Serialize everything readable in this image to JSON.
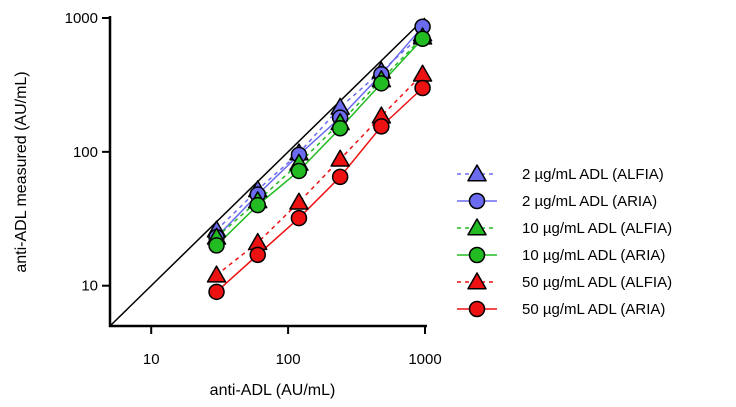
{
  "chart_data": {
    "type": "scatter",
    "xlabel": "anti-ADL (AU/mL)",
    "ylabel": "anti-ADL measured (AU/mL)",
    "xscale": "log",
    "yscale": "log",
    "xlim": [
      5,
      1000
    ],
    "ylim": [
      5,
      1000
    ],
    "xticks": [
      10,
      100,
      1000
    ],
    "yticks": [
      10,
      100,
      1000
    ],
    "xtick_labels": [
      "10",
      "100",
      "1000"
    ],
    "ytick_labels": [
      "10",
      "100",
      "1000"
    ],
    "grid": false,
    "legend": "right",
    "identity_line": true,
    "x": [
      30,
      60,
      120,
      240,
      480,
      960
    ],
    "series": [
      {
        "name": "2 µg/mL ADL (ALFIA)",
        "marker": "triangle",
        "line": "dashed",
        "fill": "#6b6bf0",
        "line_color": "#6b6bf0",
        "values": [
          26,
          52,
          98,
          215,
          400,
          760
        ]
      },
      {
        "name": "2 µg/mL ADL (ARIA)",
        "marker": "circle",
        "line": "solid",
        "fill": "#6b6bf0",
        "line_color": "#6b6bf0",
        "values": [
          23,
          48,
          95,
          180,
          380,
          860
        ]
      },
      {
        "name": "10 µg/mL ADL (ALFIA)",
        "marker": "triangle",
        "line": "dashed",
        "fill": "#22bb22",
        "line_color": "#22bb22",
        "values": [
          23,
          43,
          82,
          165,
          345,
          720
        ]
      },
      {
        "name": "10 µg/mL ADL (ARIA)",
        "marker": "circle",
        "line": "solid",
        "fill": "#22bb22",
        "line_color": "#22bb22",
        "values": [
          20,
          40,
          72,
          150,
          325,
          700
        ]
      },
      {
        "name": "50 µg/mL ADL (ALFIA)",
        "marker": "triangle",
        "line": "dashed",
        "fill": "#ee1111",
        "line_color": "#ee1111",
        "values": [
          12,
          21,
          42,
          88,
          185,
          380
        ]
      },
      {
        "name": "50 µg/mL ADL (ARIA)",
        "marker": "circle",
        "line": "solid",
        "fill": "#ee1111",
        "line_color": "#ee1111",
        "values": [
          9,
          17,
          32,
          65,
          155,
          300
        ]
      }
    ]
  }
}
